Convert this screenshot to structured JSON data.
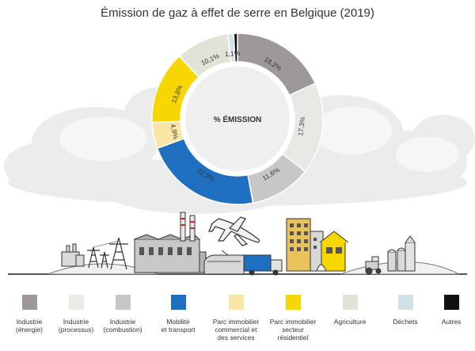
{
  "title": "Émission de gaz à effet de serre en Belgique (2019)",
  "chart_data": {
    "type": "pie",
    "center_label": "% ÉMISSION",
    "slices": [
      {
        "name": "Industrie (énergie)",
        "value": 18.2,
        "label": "18,2%",
        "color": "#9f9898"
      },
      {
        "name": "Industrie (processus)",
        "value": 17.3,
        "label": "17,3%",
        "color": "#e8e7e4"
      },
      {
        "name": "Industrie (combustion)",
        "value": 11.6,
        "label": "11,6%",
        "color": "#c9c6c6"
      },
      {
        "name": "Mobilité et transport",
        "value": 22.3,
        "label": "22,3%",
        "color": "#1f6fc0"
      },
      {
        "name": "Parc immobilier commercial et des services",
        "value": 4.9,
        "label": "4,9%",
        "color": "#f9e6a4"
      },
      {
        "name": "Parc immobilier secteur résidentiel",
        "value": 13.8,
        "label": "13,8%",
        "color": "#f8d600"
      },
      {
        "name": "Agriculture",
        "value": 10.1,
        "label": "10,1%",
        "color": "#e2e3d6"
      },
      {
        "name": "Déchets",
        "value": 1.1,
        "label": "1,1%",
        "color": "#d2e1e6"
      },
      {
        "name": "Autres",
        "value": 0.7,
        "label": "",
        "color": "#111111"
      }
    ]
  },
  "legend": [
    {
      "line1": "Industrie",
      "line2": "(énergie)",
      "line3": "",
      "color": "#9f9898"
    },
    {
      "line1": "Industrie",
      "line2": "(processus)",
      "line3": "",
      "color": "#ecebe7"
    },
    {
      "line1": "Industrie",
      "line2": "(combustion)",
      "line3": "",
      "color": "#c9c6c6"
    },
    {
      "line1": "Mobilité",
      "line2": "et transport",
      "line3": "",
      "color": "#1f6fc0"
    },
    {
      "line1": "Parc immobilier",
      "line2": "commercial et",
      "line3": "des services",
      "color": "#f9e6a4"
    },
    {
      "line1": "Parc immobilier",
      "line2": "secteur",
      "line3": "résidentiel",
      "color": "#f8d600"
    },
    {
      "line1": "Agriculture",
      "line2": "",
      "line3": "",
      "color": "#e2e3d6"
    },
    {
      "line1": "Déchets",
      "line2": "",
      "line3": "",
      "color": "#d2e1e6"
    },
    {
      "line1": "Autres",
      "line2": "",
      "line3": "",
      "color": "#111111"
    }
  ]
}
